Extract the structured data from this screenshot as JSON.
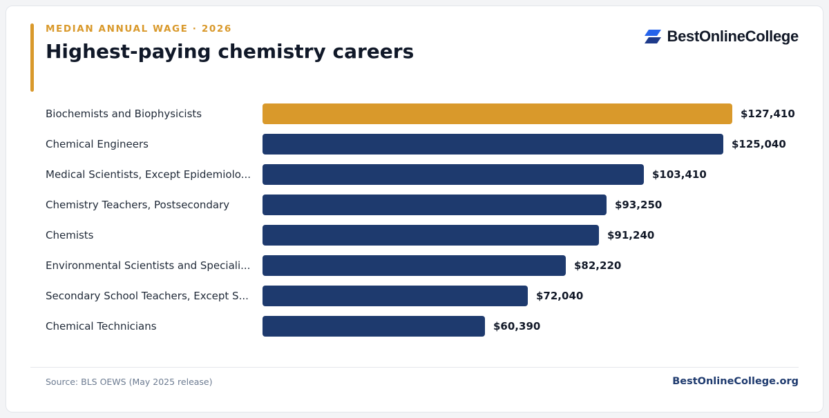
{
  "header": {
    "eyebrow": "MEDIAN ANNUAL WAGE · 2026",
    "title": "Highest-paying chemistry careers"
  },
  "brand": {
    "name": "BestOnlineCollege",
    "icon": "stacked-parallelogram-logo-icon"
  },
  "colors": {
    "accent": "#d9992b",
    "bar": "#1e3a6e",
    "highlight": "#d9992b",
    "text": "#101828"
  },
  "chart_data": {
    "type": "bar",
    "orientation": "horizontal",
    "categories": [
      "Biochemists and Biophysicists",
      "Chemical Engineers",
      "Medical Scientists, Except Epidemiolo...",
      "Chemistry Teachers, Postsecondary",
      "Chemists",
      "Environmental Scientists and Speciali...",
      "Secondary School Teachers, Except S...",
      "Chemical Technicians"
    ],
    "values": [
      127410,
      125040,
      103410,
      93250,
      91240,
      82220,
      72040,
      60390
    ],
    "value_labels": [
      "$127,410",
      "$125,040",
      "$103,410",
      "$93,250",
      "$91,240",
      "$82,220",
      "$72,040",
      "$60,390"
    ],
    "highlighted_index": 0,
    "xlim": [
      0,
      127410
    ],
    "grid": false,
    "legend": "none"
  },
  "footer": {
    "source": "Source: BLS OEWS (May 2025 release)",
    "site": "BestOnlineCollege.org"
  }
}
